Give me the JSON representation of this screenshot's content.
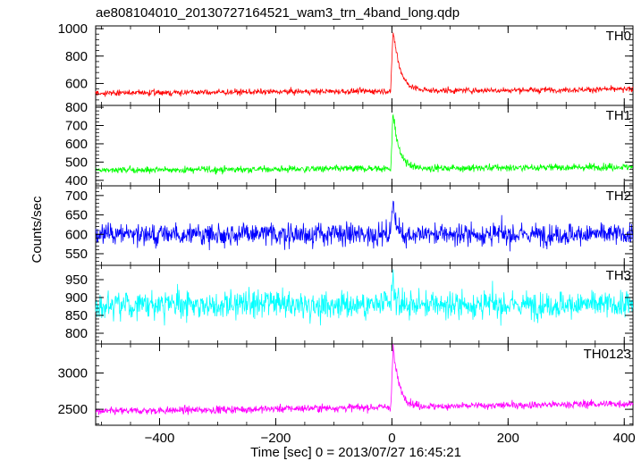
{
  "chart_data": {
    "type": "line",
    "title": "ae808104010_20130727164521_wam3_trn_4band_long.qdp",
    "xlabel": "Time [sec] 0 = 2013/07/27 16:45:21",
    "ylabel": "Counts/sec",
    "xlim": [
      -510,
      415
    ],
    "xticks": [
      -400,
      -200,
      0,
      200,
      400
    ],
    "x_tick_labels": [
      "−400",
      "−200",
      "0",
      "200",
      "400"
    ],
    "grid": false,
    "panels": [
      {
        "name": "TH0",
        "color": "#ff0000",
        "ylim": [
          440,
          1020
        ],
        "yticks": [
          600,
          800,
          1000
        ],
        "ytick_labels": [
          "600",
          "800",
          "1000"
        ],
        "baseline": 530,
        "noise": 18,
        "peak": 1020,
        "peak_x": 2,
        "decay_s": 12,
        "slope": 0.03
      },
      {
        "name": "TH1",
        "color": "#00ff00",
        "ylim": [
          370,
          810
        ],
        "yticks": [
          400,
          500,
          600,
          700,
          800
        ],
        "ytick_labels": [
          "400",
          "500",
          "600",
          "700",
          "800"
        ],
        "baseline": 455,
        "noise": 16,
        "peak": 790,
        "peak_x": 2,
        "decay_s": 10,
        "slope": 0.02
      },
      {
        "name": "TH2",
        "color": "#0000ff",
        "ylim": [
          520,
          725
        ],
        "yticks": [
          550,
          600,
          650,
          700
        ],
        "ytick_labels": [
          "550",
          "600",
          "650",
          "700"
        ],
        "baseline": 600,
        "noise": 24,
        "peak": 715,
        "peak_x": 2,
        "decay_s": 4,
        "slope": 0
      },
      {
        "name": "TH3",
        "color": "#00ffff",
        "ylim": [
          770,
          990
        ],
        "yticks": [
          800,
          850,
          900,
          950
        ],
        "ytick_labels": [
          "800",
          "850",
          "900",
          "950"
        ],
        "baseline": 880,
        "noise": 32,
        "peak": 955,
        "peak_x": 2,
        "decay_s": 3,
        "slope": 0
      },
      {
        "name": "TH0123",
        "color": "#ff00ff",
        "ylim": [
          2280,
          3400
        ],
        "yticks": [
          2500,
          3000
        ],
        "ytick_labels": [
          "2500",
          "3000"
        ],
        "baseline": 2470,
        "noise": 45,
        "peak": 3350,
        "peak_x": 2,
        "decay_s": 11,
        "slope": 0.12
      }
    ]
  }
}
